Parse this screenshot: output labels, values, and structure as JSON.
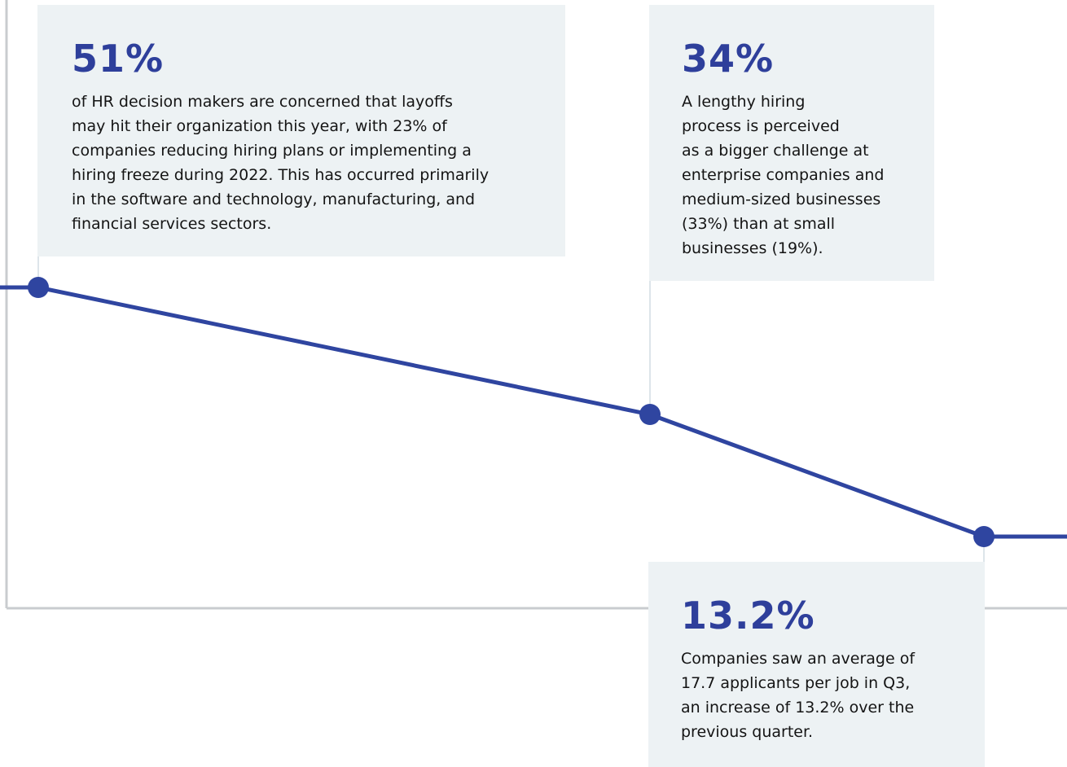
{
  "callouts": [
    {
      "stat": "51%",
      "lines": [
        "of HR decision makers are concerned that layoffs",
        "may hit their organization this year, with 23% of",
        "companies reducing hiring plans or implementing a",
        "hiring freeze during 2022. This has occurred primarily",
        "in the software and technology, manufacturing, and",
        "financial services sectors."
      ]
    },
    {
      "stat": "34%",
      "lines": [
        "A lengthy hiring",
        "process is perceived",
        "as a bigger challenge at",
        "enterprise companies and",
        "medium-sized businesses",
        "(33%) than at small",
        "businesses (19%)."
      ]
    },
    {
      "stat": "13.2%",
      "lines": [
        "Companies saw an average of",
        "17.7 applicants per job in Q3,",
        "an increase of 13.2% over the",
        "previous quarter."
      ]
    }
  ]
}
